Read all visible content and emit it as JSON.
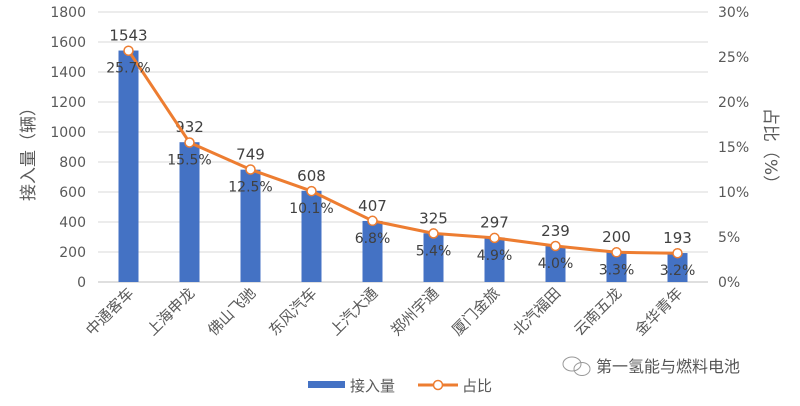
{
  "chart_data": {
    "type": "bar+line",
    "categories": [
      "中通客车",
      "上海申龙",
      "佛山飞驰",
      "东风汽车",
      "上汽大通",
      "郑州宇通",
      "厦门金旅",
      "北汽福田",
      "云南五龙",
      "金华青年"
    ],
    "series": [
      {
        "name": "接入量",
        "type": "bar",
        "axis": "left",
        "values": [
          1543,
          932,
          749,
          608,
          407,
          325,
          297,
          239,
          200,
          193
        ],
        "color": "#4472C4"
      },
      {
        "name": "占比",
        "type": "line",
        "axis": "right",
        "values": [
          25.7,
          15.5,
          12.5,
          10.1,
          6.8,
          5.4,
          4.9,
          4.0,
          3.3,
          3.2
        ],
        "labels": [
          "25.7%",
          "15.5%",
          "12.5%",
          "10.1%",
          "6.8%",
          "5.4%",
          "4.9%",
          "4.0%",
          "3.3%",
          "3.2%"
        ],
        "color": "#ED7D31"
      }
    ],
    "ylabel": "接入量（辆）",
    "y2label": "占比（%）",
    "ylim": [
      0,
      1800
    ],
    "y2lim": [
      0,
      30
    ],
    "yticks": [
      "0",
      "200",
      "400",
      "600",
      "800",
      "1000",
      "1200",
      "1400",
      "1600",
      "1800"
    ],
    "y2ticks": [
      "0%",
      "5%",
      "10%",
      "15%",
      "20%",
      "25%",
      "30%"
    ],
    "grid": true,
    "legend": "bottom-center"
  },
  "watermark": "第一氢能与燃料电池"
}
